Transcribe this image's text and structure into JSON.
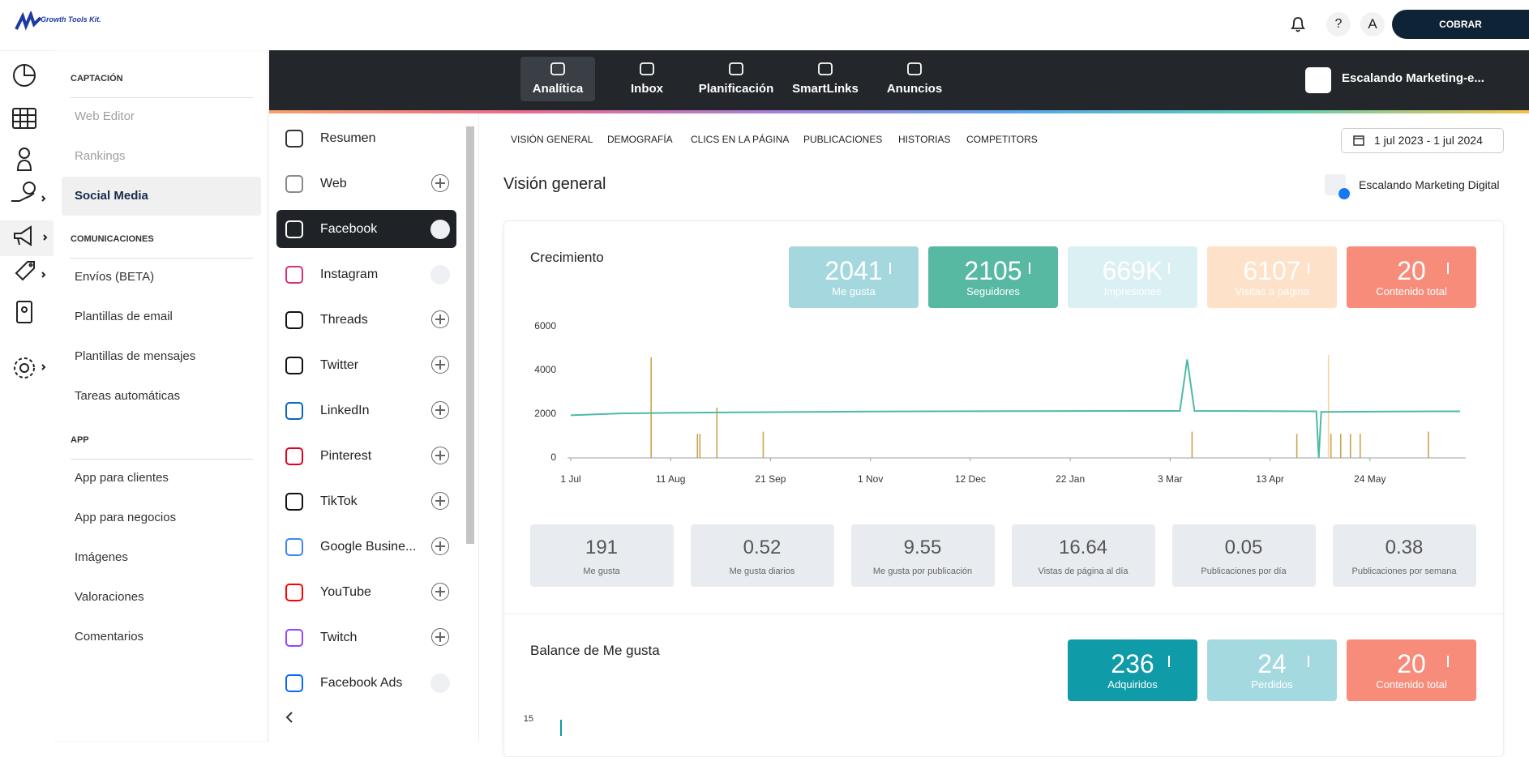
{
  "header": {
    "brand": "Growth Tools Kit.",
    "help": "?",
    "avatar": "A",
    "cta": "COBRAR"
  },
  "menu": [
    {
      "title": "CAPTACIÓN",
      "items": [
        {
          "label": "Web Editor",
          "disabled": true
        },
        {
          "label": "Rankings",
          "disabled": true
        },
        {
          "label": "Social Media",
          "active": true
        }
      ]
    },
    {
      "title": "COMUNICACIONES",
      "items": [
        {
          "label": "Envíos (BETA)"
        },
        {
          "label": "Plantillas de email"
        },
        {
          "label": "Plantillas de mensajes"
        },
        {
          "label": "Tareas automáticas"
        }
      ]
    },
    {
      "title": "APP",
      "items": [
        {
          "label": "App para clientes"
        },
        {
          "label": "App para negocios"
        },
        {
          "label": "Imágenes"
        },
        {
          "label": "Valoraciones"
        },
        {
          "label": "Comentarios"
        }
      ]
    }
  ],
  "nav": {
    "tabs": [
      {
        "label": "Analítica",
        "active": true
      },
      {
        "label": "Inbox"
      },
      {
        "label": "Planificación"
      },
      {
        "label": "SmartLinks"
      },
      {
        "label": "Anuncios"
      }
    ],
    "account": "Escalando Marketing-e..."
  },
  "networks": [
    {
      "label": "Resumen",
      "color": "#333333"
    },
    {
      "label": "Web",
      "color": "#8a8a8a",
      "status": "add"
    },
    {
      "label": "Facebook",
      "color": "#ffffff",
      "status": "linked",
      "active": true
    },
    {
      "label": "Instagram",
      "color": "#d6317a",
      "status": "linked"
    },
    {
      "label": "Threads",
      "color": "#111111",
      "status": "add"
    },
    {
      "label": "Twitter",
      "color": "#111111",
      "status": "add"
    },
    {
      "label": "LinkedIn",
      "color": "#0a66c2",
      "status": "add"
    },
    {
      "label": "Pinterest",
      "color": "#e60023",
      "status": "add"
    },
    {
      "label": "TikTok",
      "color": "#111111",
      "status": "add"
    },
    {
      "label": "Google Busine...",
      "color": "#4285f4",
      "status": "add"
    },
    {
      "label": "YouTube",
      "color": "#ff0000",
      "status": "add"
    },
    {
      "label": "Twitch",
      "color": "#9146ff",
      "status": "add"
    },
    {
      "label": "Facebook Ads",
      "color": "#0866ff",
      "status": "linked"
    }
  ],
  "subtabs": [
    "VISIÓN GENERAL",
    "DEMOGRAFÍA",
    "CLICS EN LA PÁGINA",
    "PUBLICACIONES",
    "HISTORIAS",
    "COMPETITORS"
  ],
  "date_range": "1 jul 2023 - 1 jul 2024",
  "page_title": "Visión general",
  "profile": "Escalando Marketing Digital",
  "growth": {
    "title": "Crecimiento",
    "kpis": [
      {
        "value": 2041,
        "label": "Me gusta",
        "color": "#a5d8de"
      },
      {
        "value": 2105,
        "label": "Seguidores",
        "color": "#58b9a3"
      },
      {
        "value": "669K",
        "label": "Impresiones",
        "color": "#dbf0f3"
      },
      {
        "value": 6107,
        "label": "Visitas a página",
        "color": "#fde1c8"
      },
      {
        "value": 20,
        "label": "Contenido total",
        "color": "#f78c7a"
      }
    ],
    "stats": [
      {
        "value": 191,
        "label": "Me gusta"
      },
      {
        "value": 0.52,
        "label": "Me gusta diarios"
      },
      {
        "value": 9.55,
        "label": "Me gusta por publicación"
      },
      {
        "value": 16.64,
        "label": "Vistas de página al día"
      },
      {
        "value": 0.05,
        "label": "Publicaciones por día"
      },
      {
        "value": 0.38,
        "label": "Publicaciones por semana"
      }
    ]
  },
  "balance": {
    "title": "Balance de Me gusta",
    "kpis": [
      {
        "value": 236,
        "label": "Adquiridos",
        "color": "#109ba8"
      },
      {
        "value": 24,
        "label": "Perdidos",
        "color": "#a4d9df"
      },
      {
        "value": 20,
        "label": "Contenido total",
        "color": "#f78c7a"
      }
    ],
    "ytick": 15
  },
  "chart_data": {
    "type": "combo",
    "ylim": [
      0,
      6000
    ],
    "yticks": [
      0,
      2000,
      4000,
      6000
    ],
    "xlim": [
      "2023-07-01",
      "2024-07-01"
    ],
    "xticks": [
      {
        "value": "2023-07-01",
        "label": "1 Jul"
      },
      {
        "value": "2023-08-11",
        "label": "11 Aug"
      },
      {
        "value": "2023-09-21",
        "label": "21 Sep"
      },
      {
        "value": "2023-11-01",
        "label": "1 Nov"
      },
      {
        "value": "2023-12-12",
        "label": "12 Dec"
      },
      {
        "value": "2024-01-22",
        "label": "22 Jan"
      },
      {
        "value": "2024-03-03",
        "label": "3 Mar"
      },
      {
        "value": "2024-04-13",
        "label": "13 Apr"
      },
      {
        "value": "2024-05-24",
        "label": "24 May"
      }
    ],
    "series": [
      {
        "type": "line",
        "color": "#4dbaa5",
        "x": [
          "2023-07-01",
          "2023-07-20",
          "2023-08-11",
          "2023-09-01",
          "2023-11-01",
          "2024-01-01",
          "2024-03-07",
          "2024-03-10",
          "2024-03-13",
          "2024-05-02",
          "2024-05-03",
          "2024-05-04",
          "2024-06-01",
          "2024-06-30"
        ],
        "values": [
          1950,
          2030,
          2060,
          2080,
          2120,
          2140,
          2150,
          4500,
          2150,
          2130,
          0,
          2100,
          2120,
          2130
        ]
      },
      {
        "type": "bar",
        "color": "#c9a44e",
        "x": [
          "2023-08-03",
          "2023-08-22",
          "2023-08-23",
          "2023-08-30",
          "2023-09-18",
          "2024-03-12",
          "2024-04-24",
          "2024-05-08",
          "2024-05-12",
          "2024-05-16",
          "2024-05-20",
          "2024-06-17"
        ],
        "values": [
          4600,
          1100,
          1100,
          2300,
          1200,
          1200,
          1100,
          1100,
          1100,
          1100,
          1100,
          1200
        ]
      },
      {
        "type": "bar",
        "color": "#f6d6a0",
        "x": [
          "2024-05-07"
        ],
        "values": [
          4700
        ]
      }
    ]
  }
}
